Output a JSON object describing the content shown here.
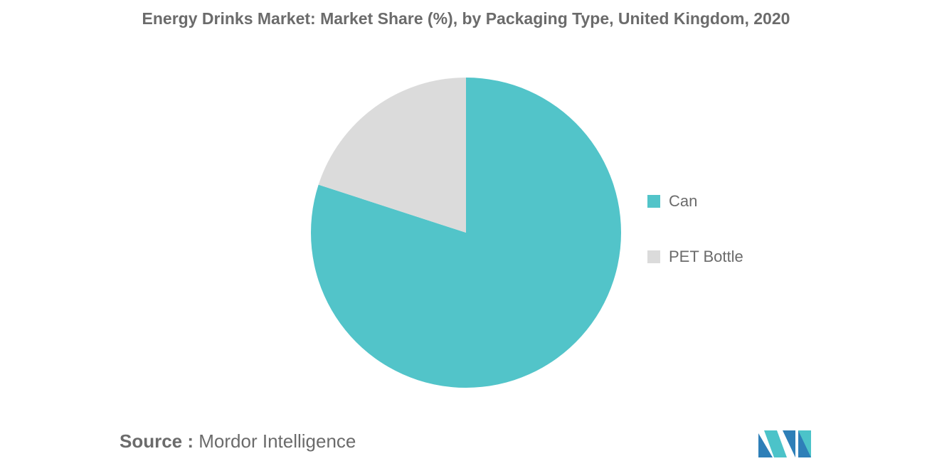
{
  "chart_data": {
    "type": "pie",
    "title": "Energy Drinks Market: Market Share (%), by Packaging Type, United Kingdom, 2020",
    "categories": [
      "Can",
      "PET Bottle"
    ],
    "values": [
      80,
      20
    ],
    "colors": [
      "#52c4c9",
      "#dbdbdb"
    ],
    "legend_position": "right",
    "start_angle_deg": 0,
    "direction": "clockwise"
  },
  "footer": {
    "source_prefix": "Source :",
    "source_name": "Mordor Intelligence"
  },
  "logo": {
    "icon": "mordor-intelligence-logo-icon",
    "colors": [
      "#2e7fb8",
      "#4cc3c9"
    ]
  }
}
